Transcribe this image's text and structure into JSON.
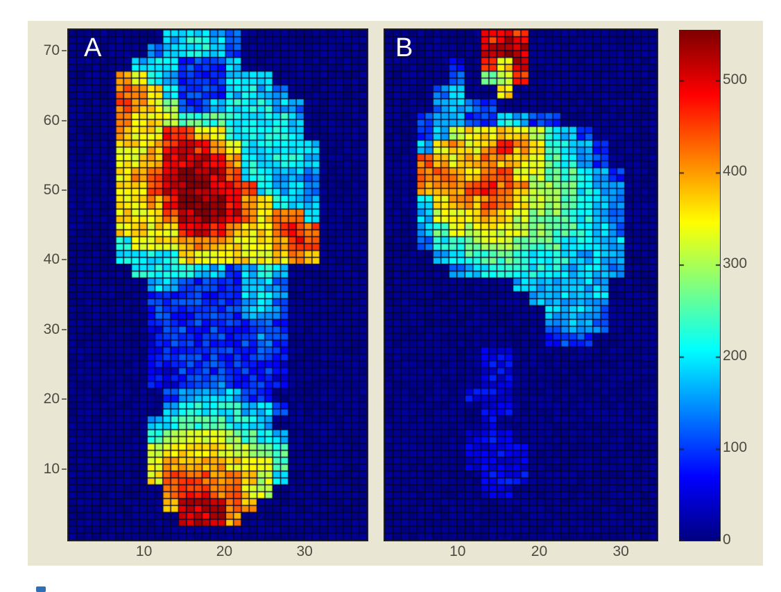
{
  "figure": {
    "type": "matlab-style pressure map figure",
    "background_color": "#e9e6d4",
    "outer_background": "#ffffff",
    "panel_a_label": "A",
    "panel_b_label": "B",
    "panel_a_y_ticks": [
      70,
      60,
      50,
      40,
      30,
      20,
      10
    ],
    "panel_a_x_ticks": [
      10,
      20,
      30
    ],
    "panel_b_x_ticks": [
      10,
      20,
      30
    ],
    "colorbar": {
      "colormap": "jet",
      "min": 0,
      "max": 554,
      "ticks": [
        0,
        100,
        200,
        300,
        400,
        500
      ],
      "top_color": "#8b0000",
      "bottom_color": "#00008f"
    }
  },
  "chart_data": [
    {
      "type": "heatmap",
      "title": "A",
      "description": "left panel plantar pressure map, full foot contact: high pressure (red ~500-550) under medial forefoot and heel, yellow metatarsal field, blue midfoot arch",
      "x_range": [
        0.5,
        38
      ],
      "y_range": [
        0,
        73
      ],
      "x_ticks": [
        10,
        20,
        30
      ],
      "y_ticks": [
        10,
        20,
        30,
        40,
        50,
        60,
        70
      ],
      "colormap": "jet",
      "grid": {
        "cols": 19,
        "rows": 37,
        "cell_size_units": 2,
        "origin": "top-left (y=73 first row, y=0 last row)",
        "value_key": {
          ".": 8,
          "1": 60,
          "2": 95,
          "3": 135,
          "4": 175,
          "5": 210,
          "6": 250,
          "7": 285,
          "8": 320,
          "9": 355,
          "a": 395,
          "b": 430,
          "c": 470,
          "d": 510,
          "e": 545
        },
        "rows_data": [
          "......45543........",
          ".....345542........",
          "....4552224........",
          "...a954222444......",
          "...ba952224543.....",
          "...ba9722455543....",
          "...b99866655554....",
          "...a99cc9955554....",
          "...99acdca955554...",
          "...99adddca55554...",
          "...9abdeedb55443...",
          "...99bdeedcb5443...",
          "...99aceeeca9544...",
          "...999bdeedb9bb4...",
          "...9999cdca99bcb...",
          "...5999aba999acb...",
          "...55559999999ba...",
          "....5555442454.....",
          ".....442222443.....",
          ".....222222453.....",
          ".....222222443.....",
          ".....122222232.....",
          ".....122222232.....",
          ".....122222222.....",
          ".....112222221.....",
          ".....112232221.....",
          "......2444422......",
          "......45555442.....",
          ".....45666554......",
          ".....678887654.....",
          ".....899998876.....",
          ".....9aaaa9986.....",
          ".....9bbbaa985.....",
          "......bccbb98......",
          "......adddba.......",
          ".......ddda........",
          "..................."
        ]
      }
    },
    {
      "type": "heatmap",
      "title": "B",
      "description": "right panel plantar pressure map, forefoot loading only: dark red toe spot, orange-yellow metatarsal band, faint blue arch and heel traces",
      "x_range": [
        1,
        34
      ],
      "y_range": [
        0,
        73
      ],
      "x_ticks": [
        10,
        20,
        30
      ],
      "y_ticks": [],
      "colormap": "jet",
      "grid": {
        "cols": 17,
        "rows": 37,
        "cell_size_units": 2,
        "origin": "top-left (y=73 first row, y=0 last row)",
        "value_key": {
          ".": 8,
          "1": 60,
          "2": 95,
          "3": 135,
          "4": 175,
          "5": 210,
          "6": 250,
          "7": 285,
          "8": 320,
          "9": 355,
          "a": 395,
          "b": 430,
          "c": 470,
          "d": 510,
          "e": 545
        },
        "rows_data": [
          "......cdc........",
          "......ded........",
          "....1.c9d........",
          "....3.78c........",
          "...34..9.........",
          "...3432..........",
          "..244225422......",
          "..24899a98542....",
          "..49a9aca96542...",
          "..ba9aba986542...",
          "..bba9bb9866542..",
          "..aaabcba876543..",
          "..59aaba9876543..",
          "..4899a98776543..",
          "..4688988766543..",
          "..3567887665544..",
          "...456666555444..",
          "....34555554443..",
          "........444444...",
          ".........44444...",
          "..........4443...",
          "..........3443...",
          "..........222....",
          "......11.........",
          "......11.........",
          "......11.........",
          ".....111.........",
          "......11.........",
          "......1..........",
          ".....111.........",
          ".....1111........",
          ".....1111........",
          "......111........",
          "......11.........",
          ".................",
          ".................",
          "................."
        ]
      }
    }
  ]
}
